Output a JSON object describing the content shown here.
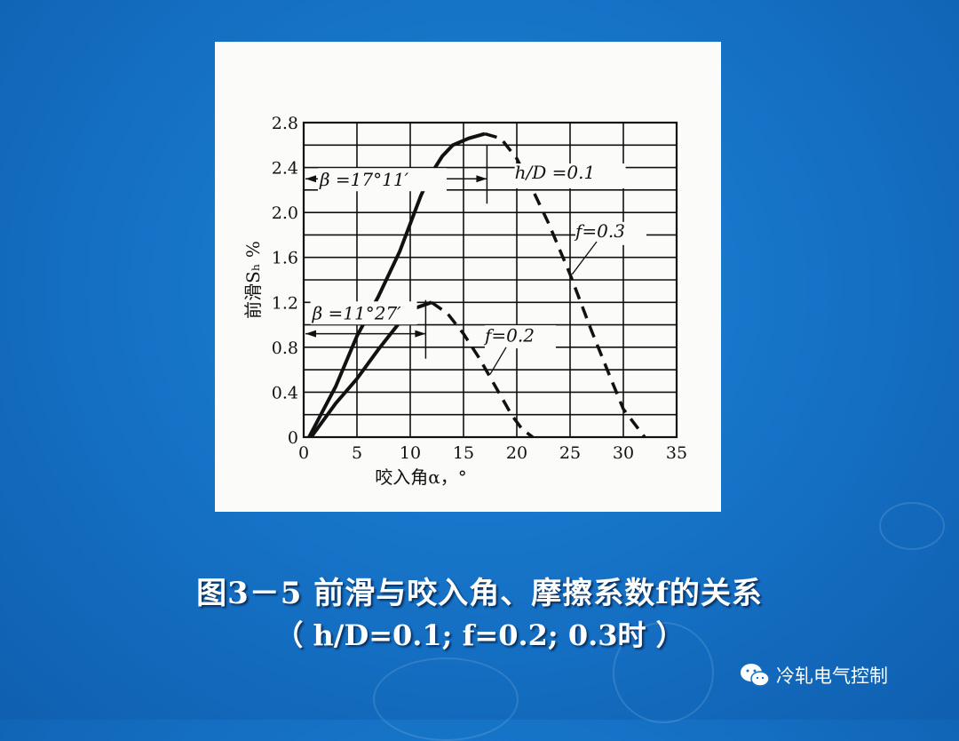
{
  "caption": {
    "line1": "图3－5 前滑与咬入角、摩擦系数f的关系",
    "line2": "（ h/D=0.1;  f=0.2;  0.3时 ）"
  },
  "watermark": {
    "text": "冷轧电气控制",
    "icon": "wechat-icon"
  },
  "colors": {
    "background": "#1570c4",
    "panel": "#fbfbf9",
    "ink": "#111111"
  },
  "chart_data": {
    "type": "line",
    "xlabel": "咬入角α，°",
    "ylabel": "前滑Sₕ %",
    "xlim": [
      0,
      35
    ],
    "ylim": [
      0,
      2.8
    ],
    "xticks": [
      "0",
      "5",
      "10",
      "15",
      "20",
      "25",
      "30",
      "35"
    ],
    "yticks": [
      "0",
      "0.4",
      "0.8",
      "1.2",
      "1.6",
      "2.0",
      "2.4",
      "2.8"
    ],
    "grid": true,
    "series": [
      {
        "name": "f=0.3",
        "solid": [
          [
            0.5,
            0
          ],
          [
            3,
            0.45
          ],
          [
            5,
            0.9
          ],
          [
            7,
            1.25
          ],
          [
            9,
            1.65
          ],
          [
            10,
            1.9
          ],
          [
            11,
            2.15
          ],
          [
            12,
            2.35
          ],
          [
            13,
            2.5
          ],
          [
            14,
            2.6
          ],
          [
            15.5,
            2.66
          ],
          [
            17,
            2.7
          ]
        ],
        "dashed": [
          [
            17,
            2.7
          ],
          [
            18.5,
            2.66
          ],
          [
            20,
            2.48
          ],
          [
            21.5,
            2.2
          ],
          [
            23,
            1.9
          ],
          [
            25,
            1.45
          ],
          [
            27,
            0.95
          ],
          [
            29,
            0.48
          ],
          [
            30,
            0.25
          ],
          [
            32,
            0
          ]
        ]
      },
      {
        "name": "f=0.2",
        "solid": [
          [
            0.7,
            0
          ],
          [
            3,
            0.3
          ],
          [
            5,
            0.52
          ],
          [
            7,
            0.78
          ],
          [
            9,
            1.02
          ],
          [
            10.5,
            1.15
          ],
          [
            12,
            1.2
          ]
        ],
        "dashed": [
          [
            12,
            1.2
          ],
          [
            13.5,
            1.1
          ],
          [
            15,
            0.92
          ],
          [
            16.5,
            0.7
          ],
          [
            18,
            0.45
          ],
          [
            19.5,
            0.2
          ],
          [
            20.5,
            0.07
          ],
          [
            21.5,
            0
          ]
        ]
      }
    ],
    "annotations": [
      {
        "text": "β =17°11′",
        "x_from": 0,
        "x_to": 17.2,
        "y": 2.3
      },
      {
        "text": "β =11°27′",
        "x_from": 0,
        "x_to": 11.45,
        "y": 0.92
      },
      {
        "text": "h/D =0.1"
      },
      {
        "text": "f=0.3"
      },
      {
        "text": "f=0.2"
      }
    ]
  }
}
